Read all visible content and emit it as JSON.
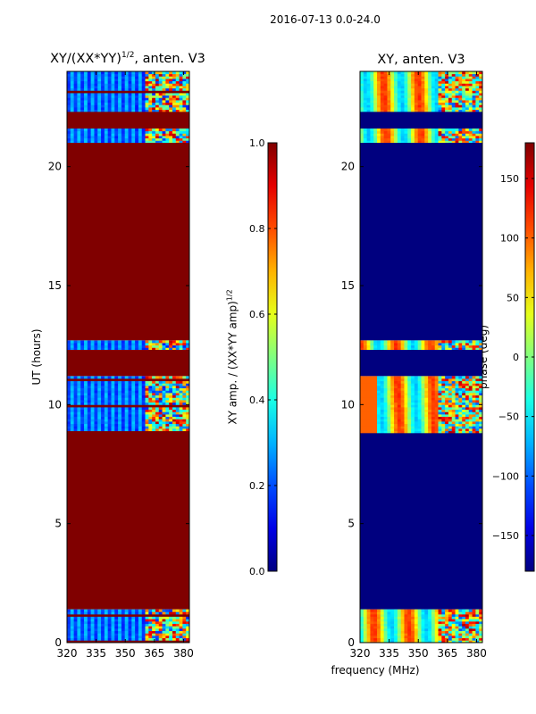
{
  "suptitle": "2016-07-13 0.0-24.0",
  "colors": {
    "saturated": "#800000",
    "masked": "#00007f",
    "frame": "#000000"
  },
  "chart_data": [
    {
      "type": "heatmap",
      "title_main": "XY/(XX*YY)",
      "title_exp": "1/2",
      "title_tail": ", anten. V3",
      "ylabel": "UT (hours)",
      "xlabel": "",
      "x_ticks": [
        320,
        335,
        350,
        365,
        380
      ],
      "y_ticks": [
        0,
        5,
        10,
        15,
        20
      ],
      "xlim": [
        320,
        383
      ],
      "ylim": [
        0,
        24
      ],
      "colorbar": {
        "label_main": "XY amp. / (XX*YY amp)",
        "label_exp": "1/2",
        "range": [
          0.0,
          1.0
        ],
        "ticks": [
          "0.0",
          "0.2",
          "0.4",
          "0.6",
          "0.8",
          "1.0"
        ],
        "colormap": "jet"
      },
      "flagged_value": 1.0,
      "data_bands_ut": [
        [
          0.0,
          1.4
        ],
        [
          8.8,
          11.2
        ],
        [
          12.3,
          12.7
        ],
        [
          21.0,
          21.6
        ],
        [
          22.3,
          24.0
        ]
      ],
      "saturated_bands_ut": [
        [
          1.4,
          8.8
        ],
        [
          11.2,
          12.3
        ],
        [
          12.7,
          21.0
        ],
        [
          21.6,
          22.3
        ]
      ]
    },
    {
      "type": "heatmap",
      "title_main": "XY, anten. V3",
      "ylabel": "",
      "xlabel": "frequency (MHz)",
      "x_ticks": [
        320,
        335,
        350,
        365,
        380
      ],
      "y_ticks": [
        0,
        5,
        10,
        15,
        20
      ],
      "xlim": [
        320,
        383
      ],
      "ylim": [
        0,
        24
      ],
      "colorbar": {
        "label_main": "phase (deg)",
        "range": [
          -180,
          180
        ],
        "ticks": [
          "−150",
          "−100",
          "−50",
          "0",
          "50",
          "100",
          "150"
        ],
        "tick_values": [
          -150,
          -100,
          -50,
          0,
          50,
          100,
          150
        ],
        "colormap": "jet"
      },
      "flagged_value": -180,
      "data_bands_ut": [
        [
          0.0,
          1.4
        ],
        [
          8.8,
          11.2
        ],
        [
          12.3,
          12.7
        ],
        [
          21.0,
          21.6
        ],
        [
          22.3,
          24.0
        ]
      ],
      "masked_bands_ut": [
        [
          1.4,
          8.8
        ],
        [
          11.2,
          12.3
        ],
        [
          12.7,
          21.0
        ],
        [
          21.6,
          22.3
        ]
      ]
    }
  ]
}
